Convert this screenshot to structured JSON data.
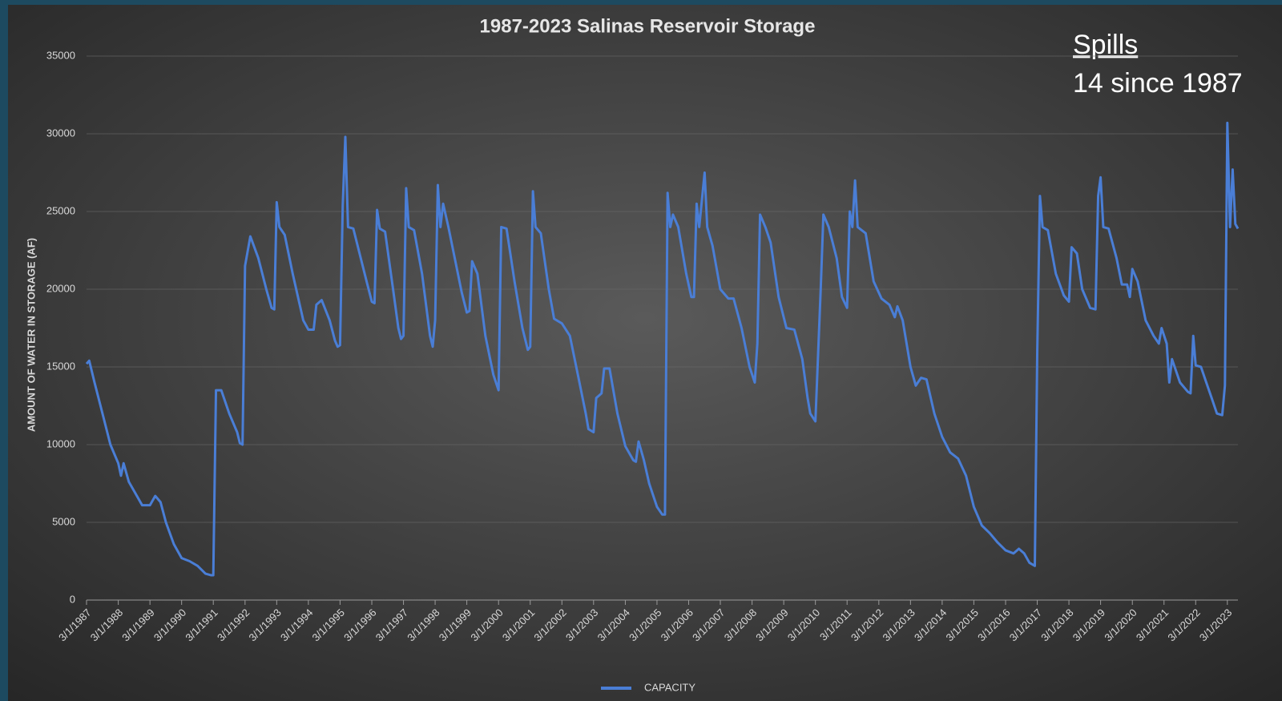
{
  "chart_data": {
    "type": "line",
    "title": "1987-2023 Salinas Reservoir Storage",
    "ylabel": "AMOUNT OF WATER IN STORAGE (AF)",
    "annotation": {
      "heading": "Spills",
      "text": "14 since 1987"
    },
    "x": [
      "3/1/1987",
      "4/1/1987",
      "6/1/1987",
      "9/1/1987",
      "12/1/1987",
      "3/1/1988",
      "4/1/1988",
      "5/1/1988",
      "7/1/1988",
      "9/1/1988",
      "12/1/1988",
      "3/1/1989",
      "5/1/1989",
      "7/1/1989",
      "9/1/1989",
      "12/1/1989",
      "3/1/1990",
      "6/1/1990",
      "9/1/1990",
      "12/1/1990",
      "2/1/1991",
      "3/1/1991",
      "4/1/1991",
      "6/1/1991",
      "9/1/1991",
      "12/1/1991",
      "1/1/1992",
      "2/1/1992",
      "3/1/1992",
      "5/1/1992",
      "8/1/1992",
      "11/1/1992",
      "1/1/1993",
      "2/1/1993",
      "3/1/1993",
      "4/1/1993",
      "6/1/1993",
      "9/1/1993",
      "1/1/1994",
      "3/1/1994",
      "5/1/1994",
      "6/1/1994",
      "8/1/1994",
      "11/1/1994",
      "1/1/1995",
      "2/1/1995",
      "3/1/1995",
      "4/1/1995",
      "5/1/1995",
      "6/1/1995",
      "8/1/1995",
      "1/1/1996",
      "3/1/1996",
      "4/1/1996",
      "5/1/1996",
      "6/1/1996",
      "8/1/1996",
      "11/1/1996",
      "1/1/1997",
      "2/1/1997",
      "3/1/1997",
      "4/1/1997",
      "5/1/1997",
      "7/1/1997",
      "10/1/1997",
      "1/1/1998",
      "2/1/1998",
      "3/1/1998",
      "4/1/1998",
      "5/1/1998",
      "6/1/1998",
      "8/1/1998",
      "1/1/1999",
      "3/1/1999",
      "4/1/1999",
      "5/1/1999",
      "7/1/1999",
      "10/1/1999",
      "1/1/2000",
      "3/1/2000",
      "4/1/2000",
      "6/1/2000",
      "9/1/2000",
      "12/1/2000",
      "2/1/2001",
      "3/1/2001",
      "4/1/2001",
      "5/1/2001",
      "7/1/2001",
      "10/1/2001",
      "12/1/2001",
      "3/1/2002",
      "6/1/2002",
      "9/1/2002",
      "12/1/2002",
      "1/1/2003",
      "3/1/2003",
      "4/1/2003",
      "6/1/2003",
      "7/1/2003",
      "9/1/2003",
      "12/1/2003",
      "3/1/2004",
      "6/1/2004",
      "7/1/2004",
      "8/1/2004",
      "10/1/2004",
      "12/1/2004",
      "3/1/2005",
      "5/1/2005",
      "6/1/2005",
      "7/1/2005",
      "8/1/2005",
      "9/1/2005",
      "11/1/2005",
      "2/1/2006",
      "4/1/2006",
      "5/1/2006",
      "6/1/2006",
      "7/1/2006",
      "9/1/2006",
      "10/1/2006",
      "12/1/2006",
      "3/1/2007",
      "6/1/2007",
      "8/1/2007",
      "11/1/2007",
      "2/1/2008",
      "4/1/2008",
      "5/1/2008",
      "6/1/2008",
      "8/1/2008",
      "10/1/2008",
      "1/1/2009",
      "4/1/2009",
      "7/1/2009",
      "10/1/2009",
      "12/1/2009",
      "1/1/2010",
      "3/1/2010",
      "5/1/2010",
      "6/1/2010",
      "8/1/2010",
      "11/1/2010",
      "1/1/2011",
      "3/1/2011",
      "4/1/2011",
      "5/1/2011",
      "6/1/2011",
      "7/1/2011",
      "10/1/2011",
      "1/1/2012",
      "4/1/2012",
      "7/1/2012",
      "9/1/2012",
      "10/1/2012",
      "12/1/2012",
      "3/1/2013",
      "5/1/2013",
      "7/1/2013",
      "9/1/2013",
      "12/1/2013",
      "3/1/2014",
      "6/1/2014",
      "9/1/2014",
      "12/1/2014",
      "3/1/2015",
      "6/1/2015",
      "9/1/2015",
      "12/1/2015",
      "3/1/2016",
      "6/1/2016",
      "8/1/2016",
      "10/1/2016",
      "12/1/2016",
      "2/1/2017",
      "3/1/2017",
      "4/1/2017",
      "5/1/2017",
      "7/1/2017",
      "10/1/2017",
      "1/1/2018",
      "3/1/2018",
      "4/1/2018",
      "6/1/2018",
      "8/1/2018",
      "11/1/2018",
      "1/1/2019",
      "2/1/2019",
      "3/1/2019",
      "4/1/2019",
      "6/1/2019",
      "9/1/2019",
      "11/1/2019",
      "1/1/2020",
      "2/1/2020",
      "3/1/2020",
      "5/1/2020",
      "8/1/2020",
      "11/1/2020",
      "1/1/2021",
      "2/1/2021",
      "4/1/2021",
      "5/1/2021",
      "6/1/2021",
      "9/1/2021",
      "12/1/2021",
      "1/1/2022",
      "2/1/2022",
      "3/1/2022",
      "5/1/2022",
      "7/1/2022",
      "9/1/2022",
      "11/1/2022",
      "1/1/2023",
      "2/1/2023",
      "3/1/2023",
      "4/1/2023",
      "5/1/2023",
      "6/1/2023",
      "7/1/2023"
    ],
    "series": [
      {
        "name": "CAPACITY",
        "color": "#4a7ed6",
        "values": [
          15200,
          15400,
          14000,
          12000,
          10000,
          8800,
          8000,
          8800,
          7600,
          7000,
          6100,
          6100,
          6700,
          6300,
          5000,
          3600,
          2700,
          2500,
          2200,
          1700,
          1600,
          1600,
          13500,
          13500,
          12000,
          10800,
          10100,
          10000,
          21500,
          23400,
          22000,
          20000,
          18800,
          18700,
          25600,
          24000,
          23500,
          21000,
          18000,
          17400,
          17400,
          19000,
          19300,
          18000,
          16700,
          16300,
          16400,
          25400,
          29800,
          24000,
          23900,
          20500,
          19200,
          19100,
          25100,
          23900,
          23700,
          20000,
          17500,
          16800,
          17000,
          26500,
          24000,
          23800,
          21000,
          17000,
          16300,
          18000,
          26700,
          24000,
          25500,
          24000,
          19800,
          18500,
          18600,
          21800,
          21000,
          17000,
          14500,
          13500,
          24000,
          23900,
          20500,
          17500,
          16100,
          16300,
          26300,
          24000,
          23600,
          20000,
          18100,
          17800,
          17000,
          14500,
          12000,
          11000,
          10800,
          13000,
          13300,
          14900,
          14900,
          12000,
          9900,
          9000,
          8900,
          10200,
          9000,
          7500,
          6000,
          5500,
          5500,
          26200,
          24000,
          24800,
          24000,
          21000,
          19500,
          19500,
          25500,
          24000,
          27500,
          24000,
          22800,
          20000,
          19400,
          19400,
          17500,
          15000,
          14000,
          16500,
          24800,
          24000,
          23000,
          19500,
          17500,
          17400,
          15500,
          13000,
          12000,
          11500,
          20000,
          24800,
          24000,
          22000,
          19500,
          18800,
          25000,
          24000,
          27000,
          24000,
          23600,
          20500,
          19400,
          19000,
          18200,
          18900,
          18000,
          15000,
          13800,
          14300,
          14200,
          12000,
          10500,
          9500,
          9100,
          8000,
          6000,
          4800,
          4300,
          3700,
          3200,
          3000,
          3300,
          3000,
          2400,
          2200,
          16000,
          26000,
          24000,
          23800,
          21000,
          19600,
          19200,
          22700,
          22300,
          20000,
          18800,
          18700,
          26000,
          27200,
          24000,
          23900,
          22000,
          20300,
          20300,
          19500,
          21300,
          20500,
          18000,
          17000,
          16500,
          17500,
          16500,
          14000,
          15500,
          14000,
          13400,
          13300,
          17000,
          15100,
          15000,
          14000,
          13000,
          12000,
          11900,
          13800,
          30700,
          24000,
          27700,
          24200,
          23900
        ]
      }
    ],
    "xlim": [
      "3/1/1987",
      "7/1/2023"
    ],
    "xticks": [
      "3/1/1987",
      "3/1/1988",
      "3/1/1989",
      "3/1/1990",
      "3/1/1991",
      "3/1/1992",
      "3/1/1993",
      "3/1/1994",
      "3/1/1995",
      "3/1/1996",
      "3/1/1997",
      "3/1/1998",
      "3/1/1999",
      "3/1/2000",
      "3/1/2001",
      "3/1/2002",
      "3/1/2003",
      "3/1/2004",
      "3/1/2005",
      "3/1/2006",
      "3/1/2007",
      "3/1/2008",
      "3/1/2009",
      "3/1/2010",
      "3/1/2011",
      "3/1/2012",
      "3/1/2013",
      "3/1/2014",
      "3/1/2015",
      "3/1/2016",
      "3/1/2017",
      "3/1/2018",
      "3/1/2019",
      "3/1/2020",
      "3/1/2021",
      "3/1/2022",
      "3/1/2023"
    ],
    "ylim": [
      0,
      35000
    ],
    "yticks": [
      0,
      5000,
      10000,
      15000,
      20000,
      25000,
      30000,
      35000
    ],
    "grid": true,
    "legend": "bottom"
  }
}
